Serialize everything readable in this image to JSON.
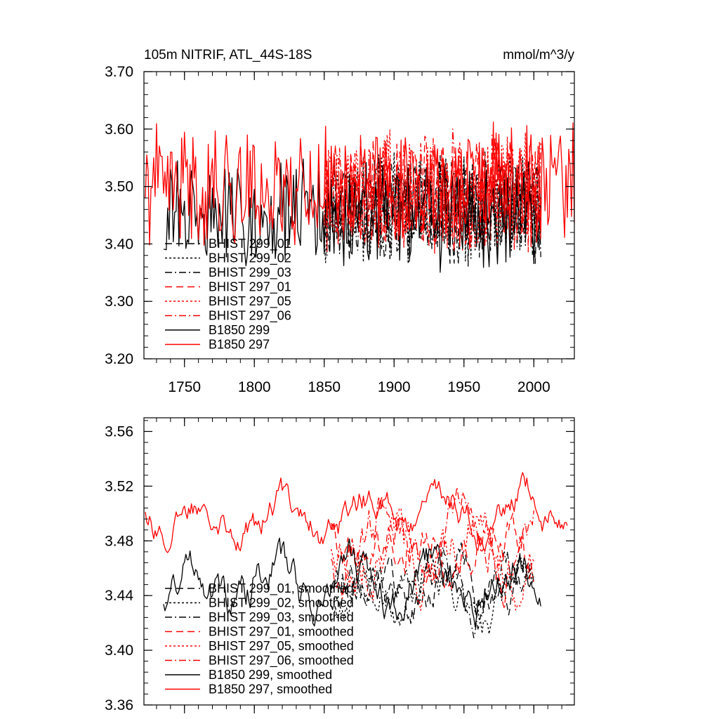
{
  "colors": {
    "black": "#000000",
    "red": "#ff0000"
  },
  "chart_data": [
    {
      "type": "line",
      "title": "105m NITRIF, ATL_44S-18S",
      "units": "mmol/m^3/y",
      "xlim": [
        1721,
        2029
      ],
      "ylim": [
        3.2,
        3.7
      ],
      "xticks": [
        1750,
        1800,
        1850,
        1900,
        1950,
        2000
      ],
      "xtick_labels": [
        "1750",
        "1800",
        "1850",
        "1900",
        "1950",
        "2000"
      ],
      "yticks": [
        3.2,
        3.3,
        3.4,
        3.5,
        3.6,
        3.7
      ],
      "ytick_labels": [
        "3.20",
        "3.30",
        "3.40",
        "3.50",
        "3.60",
        "3.70"
      ],
      "legend_position": "bottom-left",
      "series": [
        {
          "name": "BHIST 299_01",
          "color": "#000000",
          "dash": "long-dash",
          "x_range": [
            1850,
            2005
          ],
          "mean": 3.46,
          "amp": 0.045,
          "seed": 11
        },
        {
          "name": "BHIST 299_02",
          "color": "#000000",
          "dash": "dotted",
          "x_range": [
            1850,
            2005
          ],
          "mean": 3.46,
          "amp": 0.045,
          "seed": 12
        },
        {
          "name": "BHIST 299_03",
          "color": "#000000",
          "dash": "dash-dot",
          "x_range": [
            1850,
            2005
          ],
          "mean": 3.46,
          "amp": 0.045,
          "seed": 13
        },
        {
          "name": "BHIST 297_01",
          "color": "#ff0000",
          "dash": "long-dash",
          "x_range": [
            1850,
            2005
          ],
          "mean": 3.49,
          "amp": 0.05,
          "seed": 21
        },
        {
          "name": "BHIST 297_05",
          "color": "#ff0000",
          "dash": "dotted",
          "x_range": [
            1850,
            2005
          ],
          "mean": 3.49,
          "amp": 0.05,
          "seed": 22
        },
        {
          "name": "BHIST 297_06",
          "color": "#ff0000",
          "dash": "dash-dot",
          "x_range": [
            1850,
            2005
          ],
          "mean": 3.49,
          "amp": 0.05,
          "seed": 23
        },
        {
          "name": "B1850 299",
          "color": "#000000",
          "dash": "solid",
          "x_range": [
            1735,
            2005
          ],
          "mean": 3.45,
          "amp": 0.045,
          "seed": 31
        },
        {
          "name": "B1850 297",
          "color": "#ff0000",
          "dash": "solid",
          "x_range": [
            1722,
            2029
          ],
          "mean": 3.5,
          "amp": 0.05,
          "seed": 41
        }
      ]
    },
    {
      "type": "line",
      "title": "",
      "xlim": [
        1721,
        2029
      ],
      "ylim": [
        3.36,
        3.57
      ],
      "xticks": [
        1750,
        1800,
        1850,
        1900,
        1950,
        2000
      ],
      "yticks": [
        3.36,
        3.4,
        3.44,
        3.48,
        3.52,
        3.56
      ],
      "ytick_labels": [
        "3.36",
        "3.40",
        "3.44",
        "3.48",
        "3.52",
        "3.56"
      ],
      "legend_position": "bottom-left",
      "series": [
        {
          "name": "BHIST 299_01, smoothed",
          "color": "#000000",
          "dash": "long-dash",
          "x_range": [
            1855,
            2000
          ],
          "mean": 3.45,
          "amp": 0.025,
          "seed": 111
        },
        {
          "name": "BHIST 299_02, smoothed",
          "color": "#000000",
          "dash": "dotted",
          "x_range": [
            1855,
            2000
          ],
          "mean": 3.44,
          "amp": 0.025,
          "seed": 112
        },
        {
          "name": "BHIST 299_03, smoothed",
          "color": "#000000",
          "dash": "dash-dot",
          "x_range": [
            1855,
            2000
          ],
          "mean": 3.45,
          "amp": 0.025,
          "seed": 113
        },
        {
          "name": "BHIST 297_01, smoothed",
          "color": "#ff0000",
          "dash": "long-dash",
          "x_range": [
            1855,
            2000
          ],
          "mean": 3.48,
          "amp": 0.03,
          "seed": 121
        },
        {
          "name": "BHIST 297_05, smoothed",
          "color": "#ff0000",
          "dash": "dotted",
          "x_range": [
            1855,
            2000
          ],
          "mean": 3.47,
          "amp": 0.03,
          "seed": 122
        },
        {
          "name": "BHIST 297_06, smoothed",
          "color": "#ff0000",
          "dash": "dash-dot",
          "x_range": [
            1855,
            2000
          ],
          "mean": 3.48,
          "amp": 0.03,
          "seed": 123
        },
        {
          "name": "B1850 299, smoothed",
          "color": "#000000",
          "dash": "solid",
          "x_range": [
            1735,
            2005
          ],
          "mean": 3.45,
          "amp": 0.025,
          "seed": 131
        },
        {
          "name": "B1850 297, smoothed",
          "color": "#ff0000",
          "dash": "solid",
          "x_range": [
            1722,
            2024
          ],
          "mean": 3.5,
          "amp": 0.02,
          "seed": 141
        }
      ]
    }
  ]
}
